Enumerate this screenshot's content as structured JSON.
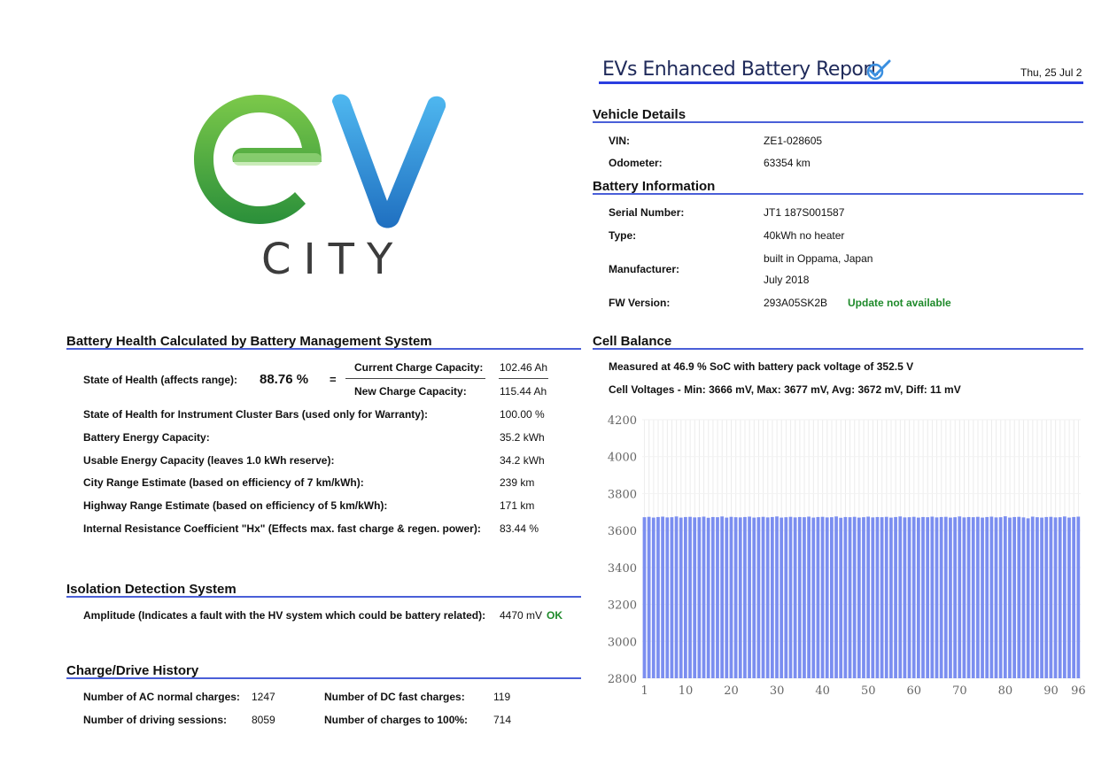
{
  "header": {
    "title": "EVs Enhanced Battery Report",
    "date": "Thu, 25 Jul 2",
    "logo_text": "CITY"
  },
  "vehicle": {
    "title": "Vehicle Details",
    "vin_label": "VIN:",
    "vin": "ZE1-028605",
    "odo_label": "Odometer:",
    "odo": "63354 km"
  },
  "battery": {
    "title": "Battery Information",
    "serial_label": "Serial Number:",
    "serial": "JT1 187S001587",
    "type_label": "Type:",
    "type": "40kWh no heater",
    "mfr_label": "Manufacturer:",
    "mfr_line1": "built in Oppama, Japan",
    "mfr_line2": "July 2018",
    "fw_label": "FW Version:",
    "fw": "293A05SK2B",
    "fw_status": "Update not available"
  },
  "health": {
    "title": "Battery Health Calculated by Battery Management System",
    "soh_label": "State of Health (affects range):",
    "soh_value": "88.76 %",
    "equals": "=",
    "cur_cap_label": "Current Charge Capacity:",
    "cur_cap": "102.46 Ah",
    "new_cap_label": "New Charge Capacity:",
    "new_cap": "115.44 Ah",
    "rows": [
      {
        "label": "State of Health for Instrument Cluster Bars (used only for Warranty):",
        "value": "100.00 %"
      },
      {
        "label": "Battery Energy Capacity:",
        "value": "35.2 kWh"
      },
      {
        "label": "Usable Energy Capacity (leaves 1.0 kWh reserve):",
        "value": "34.2 kWh"
      },
      {
        "label": "City Range Estimate (based on efficiency of 7 km/kWh):",
        "value": "239 km"
      },
      {
        "label": "Highway Range Estimate (based on efficiency of 5 km/kWh):",
        "value": "171 km"
      },
      {
        "label": "Internal Resistance Coefficient \"Hx\" (Effects max. fast charge & regen. power):",
        "value": "83.44 %"
      }
    ]
  },
  "isolation": {
    "title": "Isolation Detection System",
    "label": "Amplitude (Indicates a fault with the HV system which could be battery related):",
    "value": "4470 mV",
    "status": "OK"
  },
  "history": {
    "title": "Charge/Drive History",
    "ac_label": "Number of AC normal charges:",
    "ac": "1247",
    "dc_label": "Number of DC fast charges:",
    "dc": "119",
    "drive_label": "Number of driving sessions:",
    "drive": "8059",
    "full_label": "Number of charges to 100%:",
    "full": "714"
  },
  "cell_balance": {
    "title": "Cell Balance",
    "measured": "Measured at 46.9 % SoC with battery pack voltage of 352.5 V",
    "voltages": "Cell Voltages - Min: 3666 mV, Max: 3677 mV, Avg: 3672 mV, Diff: 11 mV"
  },
  "colors": {
    "accent": "#4a5fd8",
    "bar": "#7b8ef0",
    "ok": "#1e8a2a",
    "logo_green": "#3aa64a",
    "logo_blue": "#2f8ad6"
  },
  "chart_data": {
    "type": "bar",
    "title": "",
    "xlabel": "",
    "ylabel": "",
    "ylim": [
      2800,
      4200
    ],
    "yticks": [
      2800,
      3000,
      3200,
      3400,
      3600,
      3800,
      4000,
      4200
    ],
    "xticks": [
      1,
      10,
      20,
      30,
      40,
      50,
      60,
      70,
      80,
      90,
      96
    ],
    "x": [
      1,
      2,
      3,
      4,
      5,
      6,
      7,
      8,
      9,
      10,
      11,
      12,
      13,
      14,
      15,
      16,
      17,
      18,
      19,
      20,
      21,
      22,
      23,
      24,
      25,
      26,
      27,
      28,
      29,
      30,
      31,
      32,
      33,
      34,
      35,
      36,
      37,
      38,
      39,
      40,
      41,
      42,
      43,
      44,
      45,
      46,
      47,
      48,
      49,
      50,
      51,
      52,
      53,
      54,
      55,
      56,
      57,
      58,
      59,
      60,
      61,
      62,
      63,
      64,
      65,
      66,
      67,
      68,
      69,
      70,
      71,
      72,
      73,
      74,
      75,
      76,
      77,
      78,
      79,
      80,
      81,
      82,
      83,
      84,
      85,
      86,
      87,
      88,
      89,
      90,
      91,
      92,
      93,
      94,
      95,
      96
    ],
    "values": [
      3672,
      3674,
      3670,
      3673,
      3675,
      3671,
      3672,
      3676,
      3670,
      3673,
      3674,
      3671,
      3672,
      3675,
      3669,
      3673,
      3672,
      3676,
      3670,
      3674,
      3672,
      3671,
      3673,
      3675,
      3670,
      3672,
      3674,
      3671,
      3673,
      3676,
      3670,
      3672,
      3674,
      3671,
      3673,
      3672,
      3675,
      3670,
      3673,
      3674,
      3671,
      3672,
      3676,
      3669,
      3673,
      3672,
      3674,
      3670,
      3672,
      3675,
      3671,
      3673,
      3672,
      3674,
      3670,
      3673,
      3676,
      3671,
      3672,
      3674,
      3670,
      3673,
      3672,
      3675,
      3671,
      3673,
      3674,
      3670,
      3672,
      3676,
      3671,
      3673,
      3672,
      3674,
      3670,
      3673,
      3675,
      3671,
      3672,
      3677,
      3670,
      3673,
      3674,
      3671,
      3666,
      3675,
      3672,
      3670,
      3673,
      3674,
      3671,
      3672,
      3676,
      3670,
      3673,
      3675
    ],
    "grid": true
  }
}
